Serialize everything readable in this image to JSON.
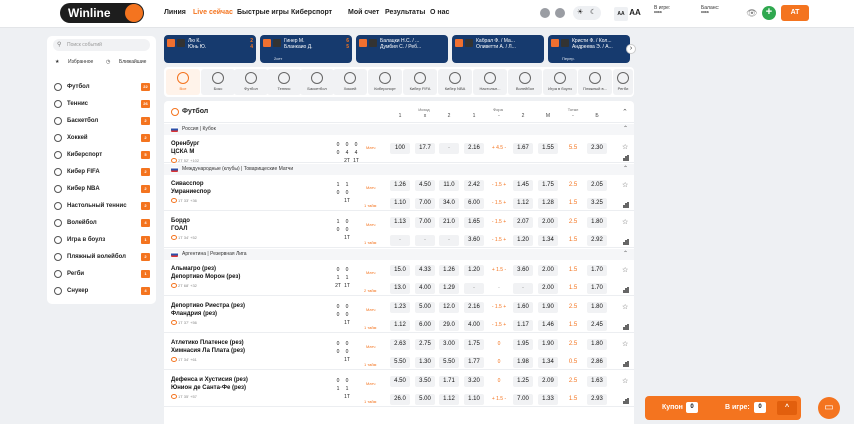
{
  "header": {
    "logo": "Winline",
    "nav": [
      "Линия",
      "Live сейчас",
      "Быстрые игры",
      "Киберспорт",
      "Мой счет",
      "Результаты",
      "О нас"
    ],
    "font_small": "AA",
    "font_big": "AA",
    "in_game_label": "В игре:",
    "in_game_value": "****",
    "balance_label": "Баланс:",
    "balance_value": "****",
    "plus": "+",
    "user": "AT"
  },
  "sidebar": {
    "search_placeholder": "Поиск событий",
    "tab_favorites": "Избранное",
    "tab_nearest": "Ближайшие",
    "items": [
      {
        "label": "Футбол",
        "count": "22"
      },
      {
        "label": "Теннис",
        "count": "26"
      },
      {
        "label": "Баскетбол",
        "count": "2"
      },
      {
        "label": "Хоккей",
        "count": "2"
      },
      {
        "label": "Киберспорт",
        "count": "5"
      },
      {
        "label": "Кибер FIFA",
        "count": "2"
      },
      {
        "label": "Кибер NBA",
        "count": "2"
      },
      {
        "label": "Настольный теннис",
        "count": "2"
      },
      {
        "label": "Волейбол",
        "count": "4"
      },
      {
        "label": "Игра в боулз",
        "count": "1"
      },
      {
        "label": "Пляжный волейбол",
        "count": "2"
      },
      {
        "label": "Регби",
        "count": "1"
      },
      {
        "label": "Снукер",
        "count": "4"
      }
    ]
  },
  "live_cards": [
    {
      "names": "Лю К.\nЮнь Ю.",
      "score": "2\n4",
      "sub": ""
    },
    {
      "names": "Гинер М.\nБланкаио Д.",
      "score": "6\n5",
      "sub": "2сет"
    },
    {
      "names": "Балацки Н.С. / ...\nДумбия С. / Реб...",
      "score": "",
      "sub": ""
    },
    {
      "names": "Кабрал Ф. / Ма...\nОливетти А. / Л...",
      "score": "",
      "sub": ""
    },
    {
      "names": "Кристи Ф. / Кол...\nАндреева Э. / А...",
      "score": "",
      "sub": "Перер."
    }
  ],
  "sports_bar": [
    "Все",
    "Бокс",
    "Футбол",
    "Теннис",
    "Баскетбол",
    "Хоккей",
    "Киберспорт",
    "Кибер FIFA",
    "Кибер NBA",
    "Настольн...",
    "Волейбол",
    "Игра в боулз",
    "Пляжный в...",
    "Регби"
  ],
  "table": {
    "title": "Футбол",
    "group_outcome": "Исход",
    "group_handicap": "Фора",
    "group_total": "Тотал",
    "cols": [
      "1",
      "x",
      "2",
      "1",
      "-",
      "2",
      "М",
      "-",
      "Б"
    ]
  },
  "leagues": [
    {
      "name": "Россия | Кубок",
      "matches": [
        {
          "t1": "Оренбург",
          "t2": "ЦСКА М",
          "meta": "2Т 52' +102",
          "s1": [
            "0",
            "0",
            "0"
          ],
          "s2": [
            "0",
            "4",
            "4"
          ],
          "s3": [
            "",
            "2Т",
            "1Т"
          ],
          "tag": "Матч",
          "odds": [
            "100",
            "17.7",
            "-",
            "2.16",
            "+ 4.5 -",
            "1.67",
            "1.55",
            "5.5",
            "2.30"
          ]
        }
      ]
    },
    {
      "name": "Международные (клубы) | Товарищеские Матчи",
      "matches": [
        {
          "t1": "Сивасспор",
          "t2": "Умраниеспор",
          "meta": "1Т 33' +36",
          "s1": [
            "1",
            "1",
            ""
          ],
          "s2": [
            "0",
            "0",
            ""
          ],
          "s3": [
            "",
            "1Т",
            ""
          ],
          "tag": "Матч",
          "tag2": "1 тайм",
          "odds": [
            "1.26",
            "4.50",
            "11.0",
            "2.42",
            "- 1.5 +",
            "1.45",
            "1.75",
            "2.5",
            "2.05"
          ],
          "odds2": [
            "1.10",
            "7.00",
            "34.0",
            "6.00",
            "- 1.5 +",
            "1.12",
            "1.28",
            "1.5",
            "3.25"
          ]
        },
        {
          "t1": "Бордо",
          "t2": "ГОАЛ",
          "meta": "1Т 34' +52",
          "s1": [
            "1",
            "0",
            ""
          ],
          "s2": [
            "0",
            "0",
            ""
          ],
          "s3": [
            "",
            "1Т",
            ""
          ],
          "tag": "Матч",
          "tag2": "1 тайм",
          "odds": [
            "1.13",
            "7.00",
            "21.0",
            "1.65",
            "- 1.5 +",
            "2.07",
            "2.00",
            "2.5",
            "1.80"
          ],
          "odds2": [
            "-",
            "-",
            "-",
            "3.60",
            "- 1.5 +",
            "1.20",
            "1.34",
            "1.5",
            "2.92"
          ]
        }
      ]
    },
    {
      "name": "Аргентина | Резервная Лига",
      "matches": [
        {
          "t1": "Альмагро (рез)",
          "t2": "Депортиво Морон (рез)",
          "meta": "2Т 68' +32",
          "s1": [
            "0",
            "0",
            ""
          ],
          "s2": [
            "1",
            "1",
            ""
          ],
          "s3": [
            "2Т",
            "1Т",
            ""
          ],
          "tag": "Матч",
          "tag2": "2 тайм",
          "odds": [
            "15.0",
            "4.33",
            "1.26",
            "1.20",
            "+ 1.5 -",
            "3.60",
            "2.00",
            "1.5",
            "1.70"
          ],
          "odds2": [
            "13.0",
            "4.00",
            "1.29",
            "-",
            "-",
            "-",
            "2.00",
            "1.5",
            "1.70"
          ]
        },
        {
          "t1": "Депортиво Риестра (рез)",
          "t2": "Фландрия (рез)",
          "meta": "1Т 37' +56",
          "s1": [
            "0",
            "0",
            ""
          ],
          "s2": [
            "0",
            "0",
            ""
          ],
          "s3": [
            "",
            "1Т",
            ""
          ],
          "tag": "Матч",
          "tag2": "1 тайм",
          "odds": [
            "1.23",
            "5.00",
            "12.0",
            "2.16",
            "- 1.5 +",
            "1.60",
            "1.90",
            "2.5",
            "1.80"
          ],
          "odds2": [
            "1.12",
            "6.00",
            "29.0",
            "4.00",
            "- 1.5 +",
            "1.17",
            "1.46",
            "1.5",
            "2.45"
          ]
        },
        {
          "t1": "Атлетико Платенсе (рез)",
          "t2": "Химнасия Ла Плата (рез)",
          "meta": "1Т 34' +61",
          "s1": [
            "0",
            "0",
            ""
          ],
          "s2": [
            "0",
            "0",
            ""
          ],
          "s3": [
            "",
            "1Т",
            ""
          ],
          "tag": "Матч",
          "tag2": "1 тайм",
          "odds": [
            "2.63",
            "2.75",
            "3.00",
            "1.75",
            "0",
            "1.95",
            "1.90",
            "2.5",
            "1.80"
          ],
          "odds2": [
            "5.50",
            "1.30",
            "5.50",
            "1.77",
            "0",
            "1.98",
            "1.34",
            "0.5",
            "2.86"
          ]
        },
        {
          "t1": "Дефенса и Хустисия (рез)",
          "t2": "Юнион де Санта-Фе (рез)",
          "meta": "1Т 35' +57",
          "s1": [
            "0",
            "0",
            ""
          ],
          "s2": [
            "1",
            "1",
            ""
          ],
          "s3": [
            "",
            "1Т",
            ""
          ],
          "tag": "Матч",
          "tag2": "1 тайм",
          "odds": [
            "4.50",
            "3.50",
            "1.71",
            "3.20",
            "0",
            "1.25",
            "2.09",
            "2.5",
            "1.63"
          ],
          "odds2": [
            "26.0",
            "5.00",
            "1.12",
            "1.10",
            "+ 1.5 -",
            "7.00",
            "1.33",
            "1.5",
            "2.93"
          ]
        }
      ]
    }
  ],
  "coupon": {
    "label": "Купон",
    "count": "0",
    "in_game": "В игре:",
    "in_game_count": "0",
    "up": "^"
  },
  "chat": "chat"
}
